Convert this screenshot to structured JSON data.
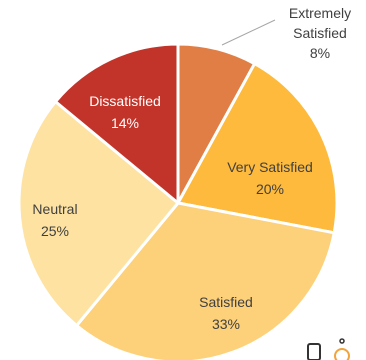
{
  "chart_data": {
    "type": "pie",
    "title": "",
    "start_category": "Extremely Satisfied",
    "direction": "clockwise",
    "slices": [
      {
        "label": "Extremely\nSatisfied",
        "value": 8,
        "pct_text": "8%",
        "color": "#E07E45",
        "label_color": "#404040"
      },
      {
        "label": "Very Satisfied",
        "value": 20,
        "pct_text": "20%",
        "color": "#FDBA3C",
        "label_color": "#404040"
      },
      {
        "label": "Satisfied",
        "value": 33,
        "pct_text": "33%",
        "color": "#FDD07A",
        "label_color": "#404040"
      },
      {
        "label": "Neutral",
        "value": 25,
        "pct_text": "25%",
        "color": "#FDE2A2",
        "label_color": "#404040"
      },
      {
        "label": "Dissatisfied",
        "value": 14,
        "pct_text": "14%",
        "color": "#C2342A",
        "label_color": "#ffffff"
      }
    ]
  },
  "colors": {
    "separator": "#ffffff",
    "leader_line": "#a6a6a6",
    "corner_icon_dark": "#333333",
    "corner_icon_accent": "#F2A33A"
  }
}
